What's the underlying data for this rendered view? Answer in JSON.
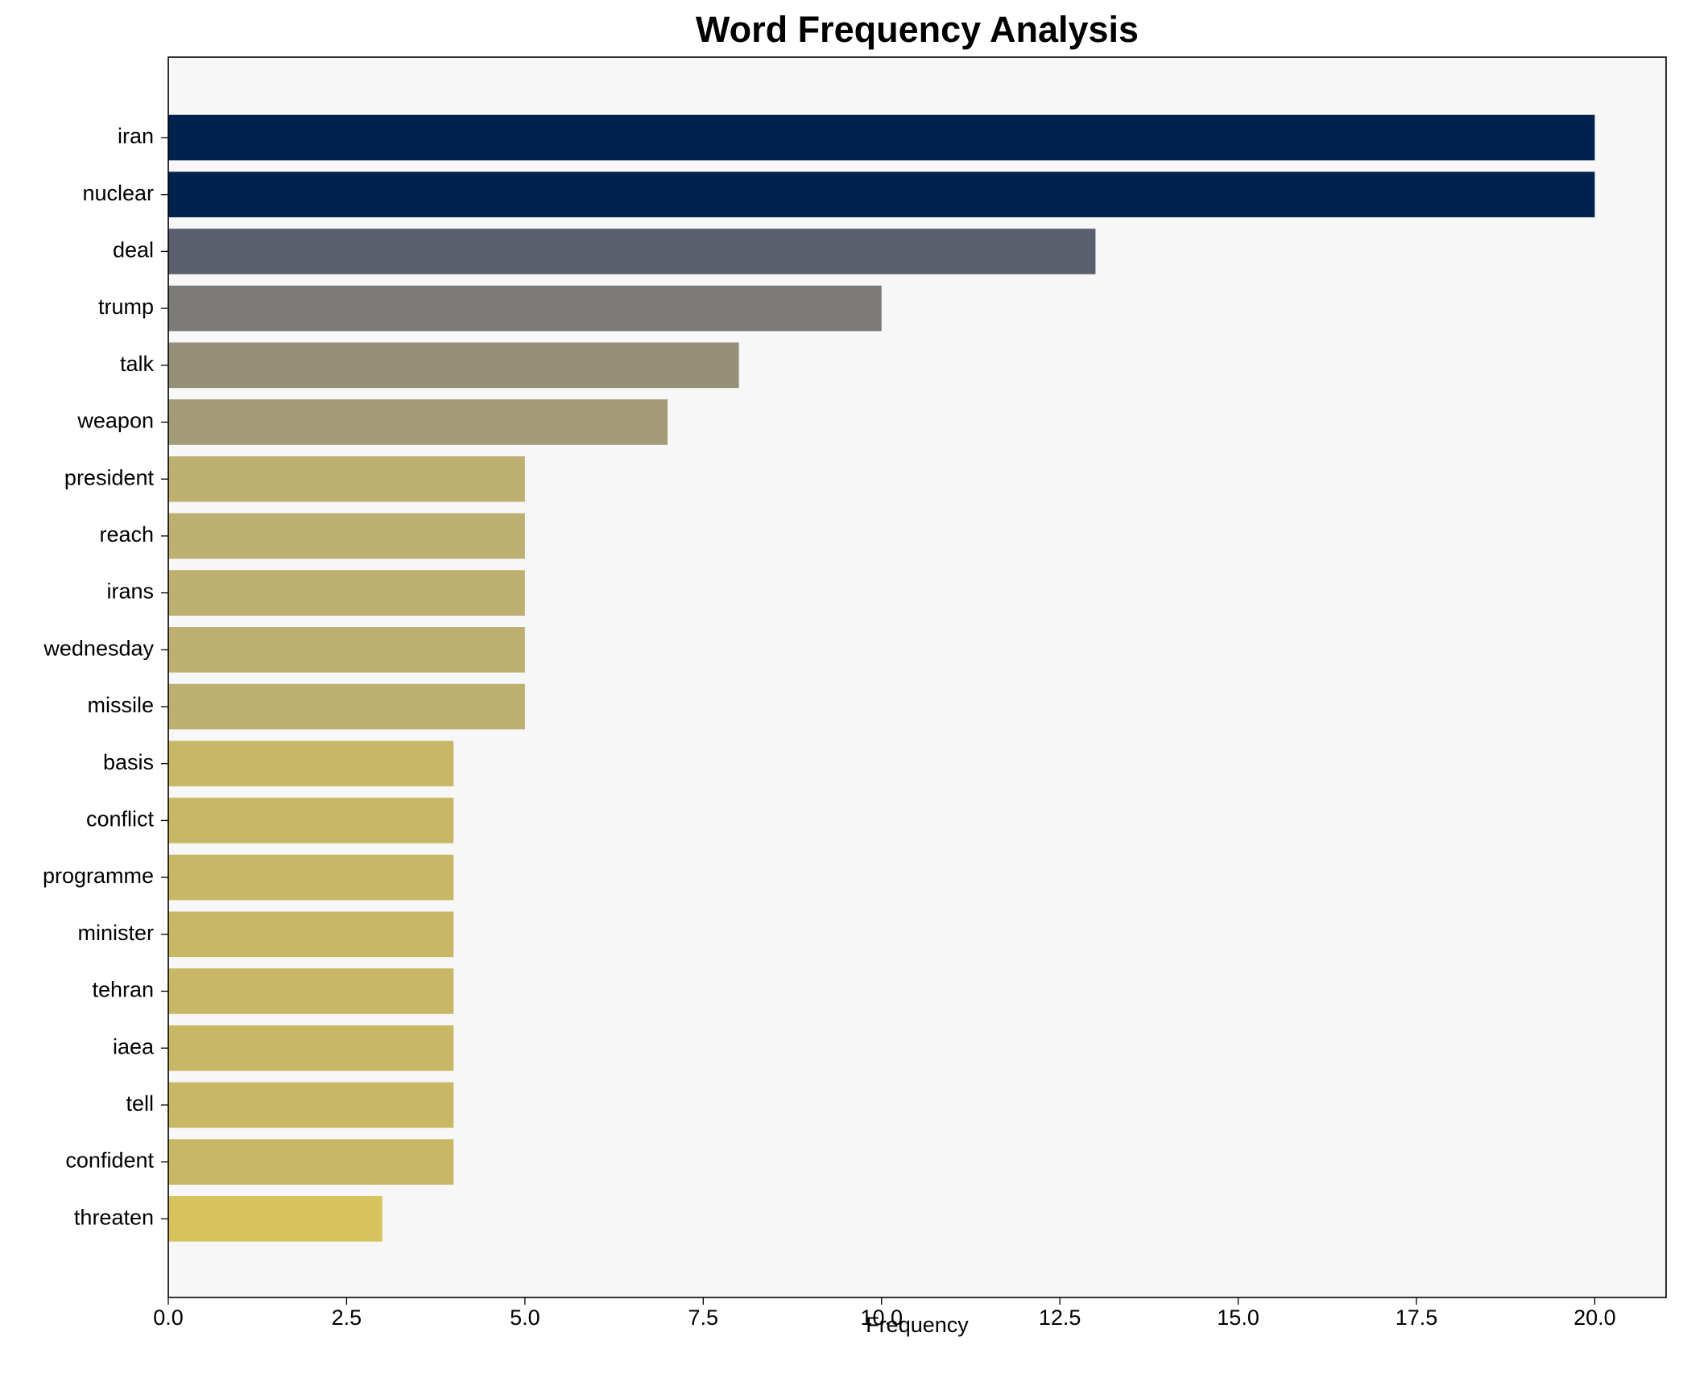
{
  "chart_data": {
    "type": "barh",
    "title": "Word Frequency Analysis",
    "xlabel": "Frequency",
    "categories": [
      "iran",
      "nuclear",
      "deal",
      "trump",
      "talk",
      "weapon",
      "president",
      "reach",
      "irans",
      "wednesday",
      "missile",
      "basis",
      "conflict",
      "programme",
      "minister",
      "tehran",
      "iaea",
      "tell",
      "confident",
      "threaten"
    ],
    "values": [
      20,
      20,
      13,
      10,
      8,
      7,
      5,
      5,
      5,
      5,
      5,
      4,
      4,
      4,
      4,
      4,
      4,
      4,
      4,
      3
    ],
    "colors": [
      "#00224e",
      "#00224e",
      "#5b5f6d",
      "#7c7b78",
      "#958f78",
      "#a39a77",
      "#bcaf6f",
      "#bcaf6f",
      "#bcaf6f",
      "#bcaf6f",
      "#bcaf6f",
      "#c8b866",
      "#c8b866",
      "#c8b866",
      "#c8b866",
      "#c8b866",
      "#c8b866",
      "#c8b866",
      "#c8b866",
      "#d7c35d"
    ],
    "xlim": [
      0,
      21
    ],
    "xticks": [
      {
        "value": 0,
        "label": "0.0"
      },
      {
        "value": 2.5,
        "label": "2.5"
      },
      {
        "value": 5,
        "label": "5.0"
      },
      {
        "value": 7.5,
        "label": "7.5"
      },
      {
        "value": 10,
        "label": "10.0"
      },
      {
        "value": 12.5,
        "label": "12.5"
      },
      {
        "value": 15,
        "label": "15.0"
      },
      {
        "value": 17.5,
        "label": "17.5"
      },
      {
        "value": 20,
        "label": "20.0"
      }
    ],
    "grid": false
  }
}
